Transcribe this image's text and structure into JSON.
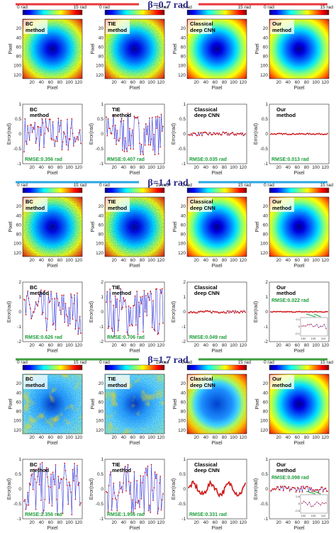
{
  "figure": {
    "colorbar": {
      "min_label": "0 rad",
      "max_label": "15 rad"
    },
    "map_xlabel": "Pixel",
    "map_ylabel": "Pixel",
    "err_xlabel": "Pixel",
    "err_ylabel": "Error(rad)",
    "map_ticks": [
      "20",
      "40",
      "60",
      "80",
      "100",
      "120"
    ],
    "colors": {
      "red_bar": "#e8363a",
      "blue_bar": "#2aa7e2",
      "green_bar": "#3f9e3f",
      "err_line": "#3b3bd8",
      "err_point": "#d01818",
      "rmse_text": "#1e9e3a"
    },
    "colormap": "jet",
    "rows": [
      {
        "beta": "β=0.7 rad",
        "bar_color": "red",
        "panels": [
          {
            "method": [
              "BC",
              "method"
            ],
            "noise": 0.55,
            "rmse": "RMSE:0.356 rad",
            "error_ylim": [
              -1,
              1
            ],
            "error_ticks": [
              "1",
              "0.5",
              "0",
              "-0.5",
              "-1"
            ],
            "error_amp": 0.6,
            "error_style": "noisy"
          },
          {
            "method": [
              "TIE",
              "method"
            ],
            "noise": 0.6,
            "rmse": "RMSE:0.407 rad",
            "error_ylim": [
              -1,
              1
            ],
            "error_ticks": [
              "1",
              "0.5",
              "0",
              "-0.5",
              "-1"
            ],
            "error_amp": 0.7,
            "error_style": "noisy"
          },
          {
            "method": [
              "Classical",
              "deep CNN"
            ],
            "noise": 0.05,
            "rmse": "RMSE:0.035 rad",
            "error_ylim": [
              -1,
              1
            ],
            "error_ticks": [
              "1",
              "0.5",
              "0",
              "-0.5",
              "-1"
            ],
            "error_amp": 0.06,
            "error_style": "flat"
          },
          {
            "method": [
              "Our",
              "method"
            ],
            "noise": 0.0,
            "rmse": "RMSE:0.013 rad",
            "error_ylim": [
              -1,
              1
            ],
            "error_ticks": [
              "1",
              "0.5",
              "0",
              "-0.5",
              "-1"
            ],
            "error_amp": 0.02,
            "error_style": "flat"
          }
        ]
      },
      {
        "beta": "β=1.4 rad",
        "bar_color": "blue",
        "panels": [
          {
            "method": [
              "BC",
              "method"
            ],
            "noise": 0.7,
            "rmse": "RMSE:0.626 rad",
            "error_ylim": [
              -2,
              2
            ],
            "error_ticks": [
              "2",
              "1",
              "0",
              "-1",
              "-2"
            ],
            "error_amp": 1.5,
            "error_style": "noisy"
          },
          {
            "method": [
              "TIE",
              "method"
            ],
            "noise": 0.75,
            "rmse": "RMSE:0.706 rad",
            "error_ylim": [
              -2,
              2
            ],
            "error_ticks": [
              "2",
              "1",
              "0",
              "-1",
              "-2"
            ],
            "error_amp": 1.7,
            "error_style": "noisy"
          },
          {
            "method": [
              "Classical",
              "deep CNN"
            ],
            "noise": 0.08,
            "rmse": "RMSE:0.049 rad",
            "error_ylim": [
              -2,
              2
            ],
            "error_ticks": [
              "2",
              "1",
              "0",
              "-1",
              "-2"
            ],
            "error_amp": 0.08,
            "error_style": "flat"
          },
          {
            "method": [
              "Our",
              "method"
            ],
            "noise": 0.0,
            "rmse": "RMSE:0.022 rad",
            "error_ylim": [
              -2,
              2
            ],
            "error_ticks": [
              "2",
              "1",
              "0",
              "-1",
              "-2"
            ],
            "error_amp": 0.03,
            "error_style": "flat",
            "inset": {
              "ticks_x": [
                "100",
                "105",
                "110"
              ],
              "ticks_y": [
                "0.1",
                "0",
                "-0.1"
              ]
            }
          }
        ]
      },
      {
        "beta": "β=1.7 rad",
        "bar_color": "green",
        "panels": [
          {
            "method": [
              "BC",
              "method"
            ],
            "noise": 0.9,
            "artifacts": true,
            "rmse": "RMSE:2.356 rad",
            "error_ylim": [
              -1,
              1
            ],
            "error_ticks": [
              "1",
              "0.5",
              "0",
              "-0.5",
              "-1"
            ],
            "error_amp": 0.9,
            "error_style": "noisy"
          },
          {
            "method": [
              "TIE",
              "method"
            ],
            "noise": 0.85,
            "artifacts": true,
            "rmse": "RMSE:1.956 rad",
            "error_ylim": [
              -1,
              1
            ],
            "error_ticks": [
              "1",
              "0.5",
              "0",
              "-0.5",
              "-1"
            ],
            "error_amp": 0.85,
            "error_style": "noisy"
          },
          {
            "method": [
              "Classical",
              "deep CNN"
            ],
            "noise": 0.25,
            "ring": true,
            "rmse": "RMSE:0.331 rad",
            "error_ylim": [
              -1,
              1
            ],
            "error_ticks": [
              "1",
              "0.5",
              "0",
              "-0.5",
              "-1"
            ],
            "error_amp": 0.25,
            "error_style": "wavy"
          },
          {
            "method": [
              "Our",
              "method"
            ],
            "noise": 0.0,
            "rmse": "RMSE:0.098 rad",
            "error_ylim": [
              -1,
              1
            ],
            "error_ticks": [
              "1",
              "0.5",
              "0",
              "-0.5",
              "-1"
            ],
            "error_amp": 0.1,
            "error_style": "flat",
            "inset": {
              "ticks_x": [
                "100",
                "105",
                "110"
              ],
              "ticks_y": [
                "0.5",
                "0",
                "-0.5"
              ]
            }
          }
        ]
      }
    ]
  }
}
